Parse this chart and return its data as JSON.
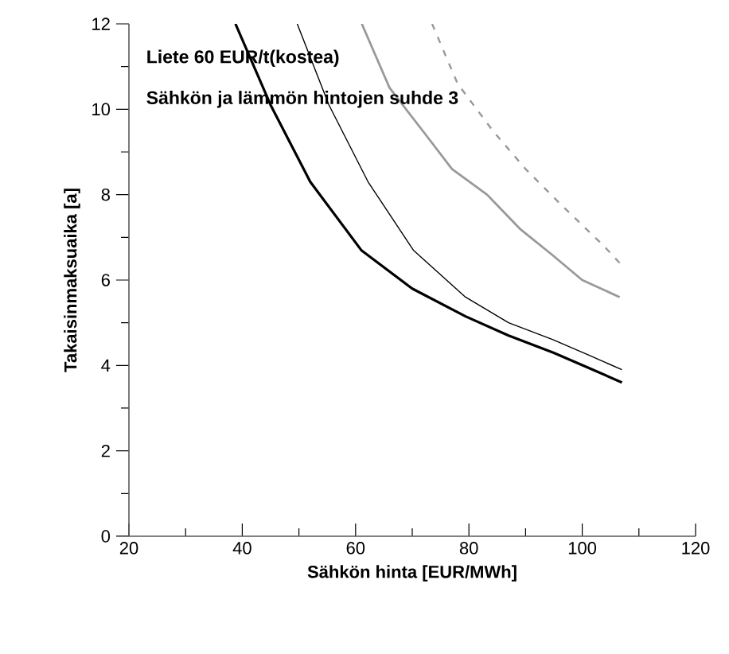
{
  "chart_data": {
    "type": "line",
    "xlabel": "Sähkön hinta [EUR/MWh]",
    "ylabel": "Takaisinmaksuaika [a]",
    "annotations": [
      "Liete 60 EUR/t(kostea)",
      "Sähkön ja lämmön hintojen suhde 3"
    ],
    "xlim": [
      20,
      120
    ],
    "xticks": [
      20,
      40,
      60,
      80,
      100,
      120
    ],
    "ylim": [
      0,
      12
    ],
    "yticks": [
      0,
      2,
      4,
      6,
      8,
      10,
      12
    ],
    "marker": "none",
    "grid": false,
    "series": [
      {
        "color": "#000000",
        "line_style": "solid",
        "x": [
          38.8,
          45,
          52,
          61,
          70,
          79.4,
          87,
          94.9,
          101,
          107
        ],
        "values": [
          12,
          10.1,
          8.3,
          6.7,
          5.8,
          5.15,
          4.7,
          4.3,
          3.95,
          3.6
        ]
      },
      {
        "color": "#000000",
        "line_style": "solid",
        "x": [
          49.7,
          55.3,
          62.2,
          70.2,
          79.4,
          87,
          94.9,
          101,
          107
        ],
        "values": [
          12,
          10.1,
          8.3,
          6.7,
          5.6,
          5.0,
          4.6,
          4.25,
          3.9
        ]
      },
      {
        "color": "#999999",
        "line_style": "solid",
        "x": [
          61.1,
          66,
          72.4,
          77,
          83.2,
          89,
          94.6,
          100,
          106.6
        ],
        "values": [
          12,
          10.5,
          9.4,
          8.6,
          8.0,
          7.2,
          6.6,
          6.0,
          5.6
        ]
      },
      {
        "color": "#999999",
        "line_style": "dashed",
        "x": [
          73.5,
          78,
          84.2,
          90,
          96,
          103.8,
          106.6
        ],
        "values": [
          12,
          10.6,
          9.5,
          8.6,
          7.8,
          6.8,
          6.4
        ]
      }
    ]
  }
}
